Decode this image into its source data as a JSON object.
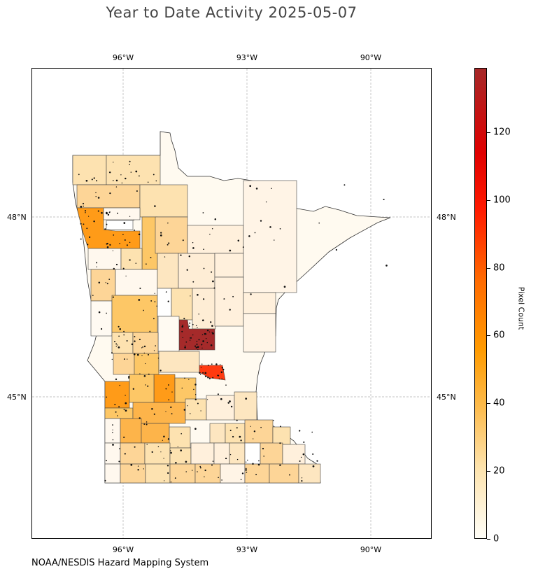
{
  "title": "Year to Date Activity 2025-05-07",
  "credit": "NOAA/NESDIS Hazard Mapping System",
  "map": {
    "region": "Minnesota counties",
    "lon_ticks": [
      "96°W",
      "93°W",
      "90°W"
    ],
    "lat_ticks": [
      "48°N",
      "45°N"
    ],
    "gridlines": true,
    "marker": "fire detection points",
    "highlight_counties": [
      {
        "name": "high-activity-county-central",
        "level": 135
      },
      {
        "name": "high-activity-county-east-central",
        "level": 75
      },
      {
        "name": "northwest-county-orange",
        "level": 48
      },
      {
        "name": "west-central-county-orange",
        "level": 45
      }
    ]
  },
  "colorbar": {
    "label": "Pixel Count",
    "ticks": [
      "0",
      "20",
      "40",
      "60",
      "80",
      "100",
      "120"
    ],
    "min": 0,
    "max": 139,
    "colors": {
      "low": "#fffef8",
      "mid": "#ff9b00",
      "high": "#a52828"
    }
  }
}
